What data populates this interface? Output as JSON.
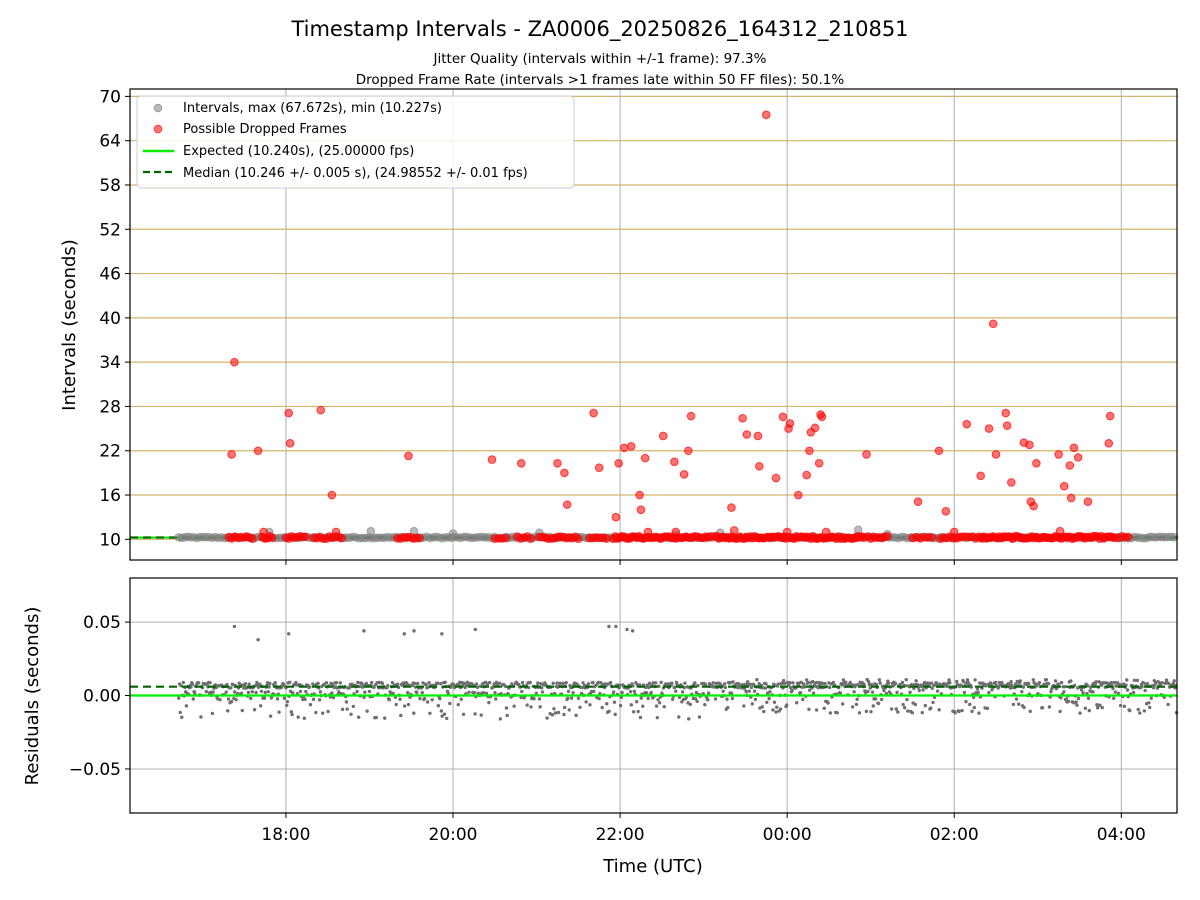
{
  "title": "Timestamp Intervals - ZA0006_20250826_164312_210851",
  "subtitle_1": "Jitter Quality (intervals within +/-1 frame): 97.3%",
  "subtitle_2": "Dropped Frame Rate (intervals >1 frames late within 50 FF files): 50.1%",
  "colors": {
    "intervals": "#808080",
    "dropped": "#ff0000",
    "expected": "#00ee00",
    "median": "#006400",
    "hgrid_top": "#d4b46a",
    "grid": "#b0b0b0"
  },
  "chart_data": [
    {
      "type": "scatter",
      "ylabel": "Intervals (seconds)",
      "ylim": [
        7.2,
        71
      ],
      "xlim": [
        "16:08",
        "04:40"
      ],
      "yticks": [
        "10",
        "16",
        "22",
        "28",
        "34",
        "40",
        "46",
        "52",
        "58",
        "64",
        "70"
      ],
      "grid": true,
      "legend_position": "top-left",
      "legend": [
        "Intervals, max (67.672s), min (10.227s)",
        "Possible Dropped Frames",
        "Expected (10.240s), (25.00000 fps)",
        "Median (10.246 +/- 0.005 s), (24.98552 +/- 0.01 fps)"
      ],
      "expected_line": 10.24,
      "median_line": 10.246,
      "series": [
        {
          "name": "Intervals",
          "marker": "gray-dot",
          "x_range": [
            "16:43",
            "04:40"
          ],
          "typical_y": 10.246,
          "outliers": [
            {
              "x": "17:48",
              "y": 11.0
            },
            {
              "x": "19:01",
              "y": 11.1
            },
            {
              "x": "19:32",
              "y": 11.1
            },
            {
              "x": "20:00",
              "y": 10.8
            },
            {
              "x": "21:02",
              "y": 10.9
            },
            {
              "x": "22:40",
              "y": 10.6
            },
            {
              "x": "23:12",
              "y": 10.9
            },
            {
              "x": "00:51",
              "y": 11.3
            },
            {
              "x": "01:12",
              "y": 10.7
            }
          ]
        },
        {
          "name": "Possible Dropped Frames",
          "marker": "red-dot",
          "points": [
            {
              "x": "17:21",
              "y": 21.5
            },
            {
              "x": "17:23",
              "y": 34.0
            },
            {
              "x": "17:40",
              "y": 22.0
            },
            {
              "x": "17:44",
              "y": 11.0
            },
            {
              "x": "18:02",
              "y": 27.1
            },
            {
              "x": "18:03",
              "y": 23.0
            },
            {
              "x": "18:25",
              "y": 27.5
            },
            {
              "x": "18:33",
              "y": 16.0
            },
            {
              "x": "18:36",
              "y": 11.0
            },
            {
              "x": "19:28",
              "y": 21.3
            },
            {
              "x": "20:28",
              "y": 20.8
            },
            {
              "x": "20:49",
              "y": 20.3
            },
            {
              "x": "21:15",
              "y": 20.3
            },
            {
              "x": "21:20",
              "y": 19.0
            },
            {
              "x": "21:22",
              "y": 14.7
            },
            {
              "x": "21:41",
              "y": 27.1
            },
            {
              "x": "21:45",
              "y": 19.7
            },
            {
              "x": "21:57",
              "y": 13.0
            },
            {
              "x": "21:59",
              "y": 20.3
            },
            {
              "x": "22:03",
              "y": 22.4
            },
            {
              "x": "22:08",
              "y": 22.6
            },
            {
              "x": "22:14",
              "y": 16.0
            },
            {
              "x": "22:15",
              "y": 14.0
            },
            {
              "x": "22:18",
              "y": 21.0
            },
            {
              "x": "22:20",
              "y": 11.0
            },
            {
              "x": "22:31",
              "y": 24.0
            },
            {
              "x": "22:39",
              "y": 20.5
            },
            {
              "x": "22:40",
              "y": 11.0
            },
            {
              "x": "22:46",
              "y": 18.8
            },
            {
              "x": "22:49",
              "y": 22.0
            },
            {
              "x": "22:51",
              "y": 26.7
            },
            {
              "x": "23:20",
              "y": 14.3
            },
            {
              "x": "23:22",
              "y": 11.2
            },
            {
              "x": "23:28",
              "y": 26.4
            },
            {
              "x": "23:31",
              "y": 24.2
            },
            {
              "x": "23:39",
              "y": 24.0
            },
            {
              "x": "23:40",
              "y": 19.9
            },
            {
              "x": "23:45",
              "y": 67.5
            },
            {
              "x": "23:52",
              "y": 18.3
            },
            {
              "x": "23:57",
              "y": 26.6
            },
            {
              "x": "24:00",
              "y": 11.0
            },
            {
              "x": "24:01",
              "y": 25.0
            },
            {
              "x": "24:02",
              "y": 25.7
            },
            {
              "x": "24:08",
              "y": 16.0
            },
            {
              "x": "24:14",
              "y": 18.7
            },
            {
              "x": "24:16",
              "y": 22.0
            },
            {
              "x": "24:17",
              "y": 24.5
            },
            {
              "x": "24:20",
              "y": 25.1
            },
            {
              "x": "24:23",
              "y": 20.3
            },
            {
              "x": "24:24",
              "y": 26.9
            },
            {
              "x": "24:25",
              "y": 26.6
            },
            {
              "x": "24:28",
              "y": 11.0
            },
            {
              "x": "24:57",
              "y": 21.5
            },
            {
              "x": "25:34",
              "y": 15.1
            },
            {
              "x": "25:49",
              "y": 22.0
            },
            {
              "x": "25:54",
              "y": 13.8
            },
            {
              "x": "26:00",
              "y": 11.0
            },
            {
              "x": "26:09",
              "y": 25.6
            },
            {
              "x": "26:19",
              "y": 18.6
            },
            {
              "x": "26:25",
              "y": 25.0
            },
            {
              "x": "26:28",
              "y": 39.2
            },
            {
              "x": "26:30",
              "y": 21.5
            },
            {
              "x": "26:37",
              "y": 27.1
            },
            {
              "x": "26:38",
              "y": 25.4
            },
            {
              "x": "26:41",
              "y": 17.7
            },
            {
              "x": "26:50",
              "y": 23.1
            },
            {
              "x": "26:54",
              "y": 22.8
            },
            {
              "x": "26:55",
              "y": 15.1
            },
            {
              "x": "26:57",
              "y": 14.5
            },
            {
              "x": "26:59",
              "y": 20.3
            },
            {
              "x": "27:15",
              "y": 21.5
            },
            {
              "x": "27:16",
              "y": 11.1
            },
            {
              "x": "27:19",
              "y": 17.2
            },
            {
              "x": "27:23",
              "y": 20.0
            },
            {
              "x": "27:24",
              "y": 15.6
            },
            {
              "x": "27:26",
              "y": 22.4
            },
            {
              "x": "27:29",
              "y": 21.1
            },
            {
              "x": "27:36",
              "y": 15.1
            },
            {
              "x": "27:51",
              "y": 23.0
            },
            {
              "x": "27:52",
              "y": 26.7
            }
          ],
          "baseline_clusters_y": 10.25
        }
      ]
    },
    {
      "type": "scatter",
      "xlabel": "Time (UTC)",
      "ylabel": "Residuals (seconds)",
      "ylim": [
        -0.08,
        0.08
      ],
      "yticks": [
        "−0.05",
        "0.00",
        "0.05"
      ],
      "xticks": [
        "18:00",
        "20:00",
        "22:00",
        "00:00",
        "02:00",
        "04:00"
      ],
      "grid": true,
      "expected_line": 0.0,
      "median_line": 0.006,
      "series": [
        {
          "name": "Residuals",
          "marker": "gray-dot",
          "outliers": [
            {
              "x": "17:23",
              "y": 0.047
            },
            {
              "x": "17:40",
              "y": 0.038
            },
            {
              "x": "18:02",
              "y": 0.042
            },
            {
              "x": "18:56",
              "y": 0.044
            },
            {
              "x": "19:25",
              "y": 0.042
            },
            {
              "x": "19:32",
              "y": 0.044
            },
            {
              "x": "19:52",
              "y": 0.042
            },
            {
              "x": "20:16",
              "y": 0.045
            },
            {
              "x": "21:52",
              "y": 0.047
            },
            {
              "x": "21:57",
              "y": 0.047
            },
            {
              "x": "22:05",
              "y": 0.045
            },
            {
              "x": "22:09",
              "y": 0.044
            }
          ]
        }
      ]
    }
  ]
}
